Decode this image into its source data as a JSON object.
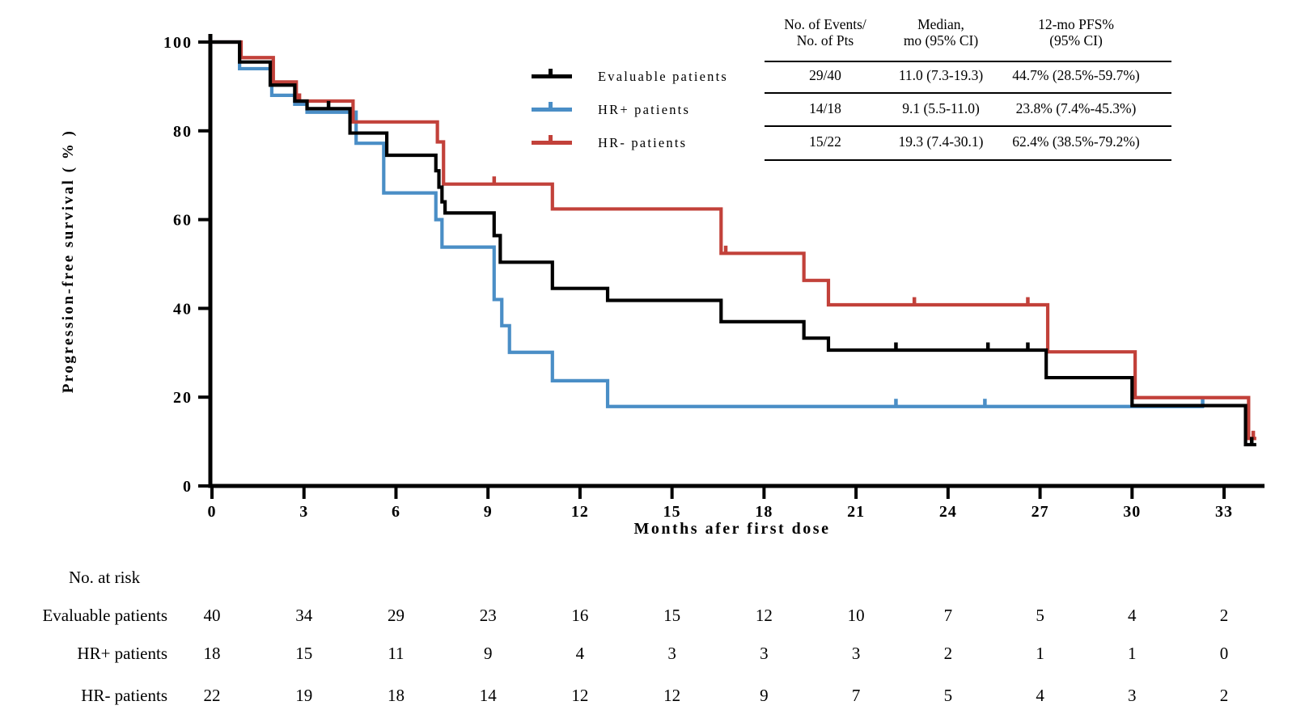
{
  "chart_data": {
    "type": "line",
    "subtype": "kaplan-meier-step",
    "title": "",
    "xlabel": "Months afer first dose",
    "ylabel": "Progression-free survival ( % )",
    "xlim": [
      0,
      34.5
    ],
    "ylim": [
      0,
      100
    ],
    "x_ticks": [
      0,
      3,
      6,
      9,
      12,
      15,
      18,
      21,
      24,
      27,
      30,
      33
    ],
    "y_ticks": [
      0,
      20,
      40,
      60,
      80,
      100
    ],
    "grid": false,
    "legend_position": "upper-center-left",
    "series": [
      {
        "name": "Evaluable patients",
        "color": "#000000",
        "end_month": 34.05,
        "steps": [
          [
            0,
            100
          ],
          [
            0.9,
            95.5
          ],
          [
            1.9,
            90.3
          ],
          [
            2.7,
            86.7
          ],
          [
            3.1,
            85
          ],
          [
            4.5,
            79.5
          ],
          [
            5.7,
            74.5
          ],
          [
            7.3,
            71
          ],
          [
            7.4,
            67.3
          ],
          [
            7.5,
            64
          ],
          [
            7.6,
            61.5
          ],
          [
            9.2,
            56.4
          ],
          [
            9.4,
            50.4
          ],
          [
            11.1,
            44.5
          ],
          [
            12.9,
            41.8
          ],
          [
            16.6,
            37
          ],
          [
            19.3,
            33.3
          ],
          [
            20.1,
            30.6
          ],
          [
            27.2,
            24.4
          ],
          [
            30,
            18.1
          ],
          [
            33.7,
            9.3
          ]
        ],
        "censors": [
          [
            3.8,
            85
          ],
          [
            22.3,
            30.6
          ],
          [
            25.3,
            30.6
          ],
          [
            26.6,
            30.6
          ],
          [
            33.9,
            9.3
          ]
        ]
      },
      {
        "name": "HR+ patients",
        "color": "#4a8ec6",
        "end_month": 32.35,
        "steps": [
          [
            0,
            100
          ],
          [
            0.9,
            94
          ],
          [
            1.95,
            88
          ],
          [
            2.7,
            86
          ],
          [
            3.1,
            84.2
          ],
          [
            4.7,
            77.2
          ],
          [
            5.6,
            66
          ],
          [
            7.3,
            60
          ],
          [
            7.5,
            53.8
          ],
          [
            9.2,
            42
          ],
          [
            9.45,
            36.1
          ],
          [
            9.7,
            30.1
          ],
          [
            11.1,
            23.7
          ],
          [
            12.9,
            17.9
          ]
        ],
        "censors": [
          [
            22.3,
            17.9
          ],
          [
            25.2,
            17.9
          ],
          [
            32.3,
            17.9
          ]
        ]
      },
      {
        "name": "HR- patients",
        "color": "#c2413a",
        "end_month": 34.05,
        "steps": [
          [
            0,
            100
          ],
          [
            0.95,
            96.5
          ],
          [
            2,
            91
          ],
          [
            2.75,
            86.7
          ],
          [
            4.6,
            82
          ],
          [
            7.35,
            77.5
          ],
          [
            7.55,
            68
          ],
          [
            11.1,
            62.4
          ],
          [
            16.6,
            52.4
          ],
          [
            19.3,
            46.3
          ],
          [
            20.1,
            40.8
          ],
          [
            27.25,
            30.2
          ],
          [
            30.1,
            19.9
          ],
          [
            33.8,
            10.7
          ]
        ],
        "censors": [
          [
            2.85,
            86.7
          ],
          [
            9.2,
            68
          ],
          [
            16.75,
            52.4
          ],
          [
            22.9,
            40.8
          ],
          [
            26.6,
            40.8
          ],
          [
            33.95,
            10.7
          ]
        ]
      }
    ]
  },
  "summary_table": {
    "headers": [
      [
        "No. of Events/",
        "No. of Pts"
      ],
      [
        "Median,",
        "mo (95% CI)"
      ],
      [
        "12-mo PFS%",
        "(95% CI)"
      ]
    ],
    "rows": [
      [
        "29/40",
        "11.0 (7.3-19.3)",
        "44.7% (28.5%-59.7%)"
      ],
      [
        "14/18",
        "9.1 (5.5-11.0)",
        "23.8% (7.4%-45.3%)"
      ],
      [
        "15/22",
        "19.3 (7.4-30.1)",
        "62.4% (38.5%-79.2%)"
      ]
    ]
  },
  "at_risk": {
    "title": "No. at risk",
    "months": [
      0,
      3,
      6,
      9,
      12,
      15,
      18,
      21,
      24,
      27,
      30,
      33
    ],
    "rows": [
      {
        "label": "Evaluable patients",
        "counts": [
          40,
          34,
          29,
          23,
          16,
          15,
          12,
          10,
          7,
          5,
          4,
          2
        ]
      },
      {
        "label": "HR+ patients",
        "counts": [
          18,
          15,
          11,
          9,
          4,
          3,
          3,
          3,
          2,
          1,
          1,
          0
        ]
      },
      {
        "label": "HR- patients",
        "counts": [
          22,
          19,
          18,
          14,
          12,
          12,
          9,
          7,
          5,
          4,
          3,
          2
        ]
      }
    ]
  }
}
